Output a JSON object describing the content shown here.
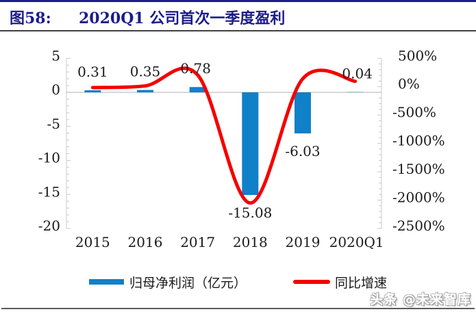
{
  "header": {
    "figure_label": "图58:",
    "title": "2020Q1 公司首次一季度盈利"
  },
  "watermark": "头条 @未来智库",
  "colors": {
    "title_navy": "#1c1c8c",
    "bar_blue": "#1080c8",
    "line_red": "#f50000",
    "axis_line": "#c9c9c9",
    "zero_gridline": "#c0c0c0",
    "text": "#1a1a1a",
    "header_rule": "#404040",
    "bottom_rule": "#5a5a5a"
  },
  "chart_data": {
    "type": "combo-bar-line-dual-axis",
    "categories": [
      "2015",
      "2016",
      "2017",
      "2018",
      "2019",
      "2020Q1"
    ],
    "series": [
      {
        "name": "归母净利润（亿元）",
        "type": "bar",
        "axis": "left",
        "color": "#1080c8",
        "values": [
          0.31,
          0.35,
          0.78,
          -15.08,
          -6.03,
          0.04
        ],
        "data_labels": [
          "0.31",
          "0.35",
          "0.78",
          "-15.08",
          "-6.03",
          "0.04"
        ]
      },
      {
        "name": "同比增速",
        "type": "line",
        "axis": "right",
        "color": "#f50000",
        "smooth": true,
        "values_pct": [
          -15,
          14,
          205,
          -2050,
          140,
          95
        ],
        "values_estimated": true
      }
    ],
    "left_axis": {
      "min": -20,
      "max": 5,
      "major_unit": 5,
      "minor_unit": 1,
      "tick_labels": [
        "5",
        "0",
        "-5",
        "-10",
        "-15",
        "-20"
      ]
    },
    "right_axis": {
      "min": -2500,
      "max": 500,
      "major_unit": 500,
      "minor_unit": 100,
      "tick_labels": [
        "500%",
        "0%",
        "-500%",
        "-1000%",
        "-1500%",
        "-2000%",
        "-2500%"
      ]
    },
    "gridlines": "zero-line-only",
    "legend_position": "bottom"
  }
}
